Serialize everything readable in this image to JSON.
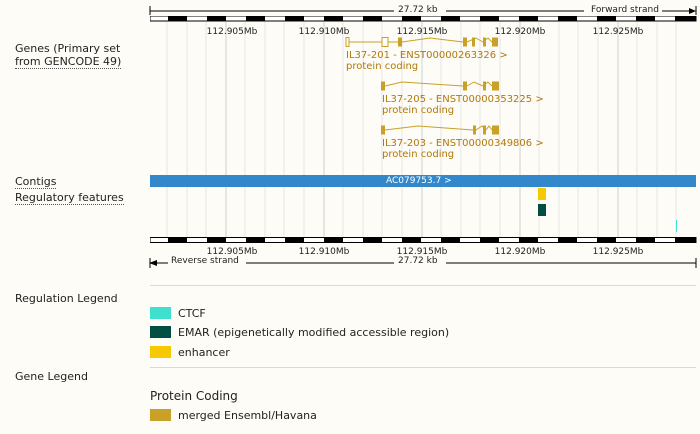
{
  "top_ruler": {
    "length_label": "27.72 kb",
    "strand_label": "Forward strand"
  },
  "bottom_ruler": {
    "length_label": "27.72 kb",
    "strand_label": "Reverse strand"
  },
  "axis": {
    "ticks": [
      "112.905Mb",
      "112.910Mb",
      "112.915Mb",
      "112.920Mb",
      "112.925Mb"
    ]
  },
  "tracks": {
    "genes": {
      "label_line1": "Genes (Primary set",
      "label_line2": "from GENCODE 49)"
    },
    "contigs": {
      "label": "Contigs",
      "contig_name": "AC079753.7 >"
    },
    "regulatory": {
      "label": "Regulatory features"
    }
  },
  "transcripts": [
    {
      "name": "IL37-201 - ENST00000263326 >",
      "biotype": "protein coding"
    },
    {
      "name": "IL37-205 - ENST00000353225 >",
      "biotype": "protein coding"
    },
    {
      "name": "IL37-203 - ENST00000349806 >",
      "biotype": "protein coding"
    }
  ],
  "regulation_legend": {
    "title": "Regulation Legend",
    "items": [
      {
        "label": "CTCF",
        "color": "#40e0d0"
      },
      {
        "label": "EMAR (epigenetically modified accessible region)",
        "color": "#014f42"
      },
      {
        "label": "enhancer",
        "color": "#f7c902"
      }
    ]
  },
  "gene_legend": {
    "title": "Gene Legend",
    "subtitle": "Protein Coding",
    "items": [
      {
        "label": "merged Ensembl/Havana",
        "color": "#c9a129"
      }
    ]
  },
  "colors": {
    "gene": "#c9a129",
    "gene_text": "#b1780c",
    "contig": "#3388cc"
  }
}
